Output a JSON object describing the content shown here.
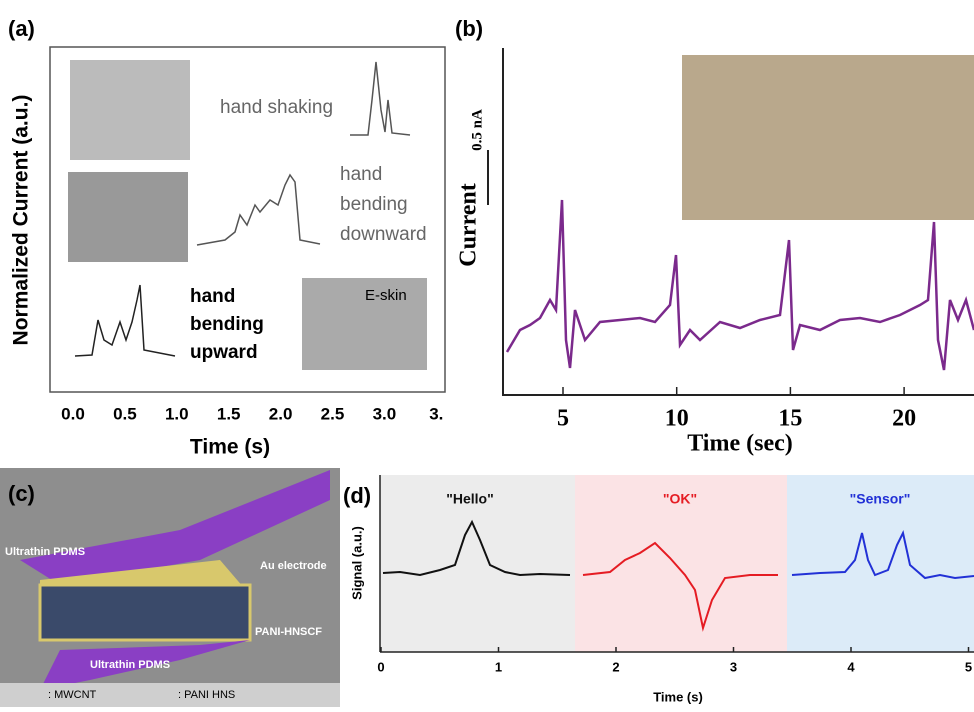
{
  "panels": [
    {
      "label": "(a)",
      "x_axis_title": "Time (s)",
      "y_axis_title": "Normalized Current (a.u.)",
      "x_tick_labels": [
        "0.0",
        "0.5",
        "1.0",
        "1.5",
        "2.0",
        "2.5",
        "3.0",
        "3."
      ],
      "annotations": [
        "hand shaking",
        "hand",
        "bending",
        "downward",
        "hand",
        "bending",
        "upward",
        "E-skin"
      ]
    },
    {
      "label": "(b)",
      "x_axis_title": "Time (sec)",
      "y_axis_title": "Current",
      "scale_bar": "0.5 nA",
      "x_tick_labels": [
        "5",
        "10",
        "15",
        "20"
      ]
    },
    {
      "label": "(c)",
      "annotations": [
        "Ultrathin PDMS",
        "Au electrode",
        "PANI-HNSCF",
        "Ultrathin PDMS"
      ],
      "legend": [
        ": MWCNT",
        ": PANI HNS"
      ]
    },
    {
      "label": "(d)",
      "x_axis_title": "Time (s)",
      "y_axis_title": "Signal (a.u.)",
      "x_tick_labels": [
        "0",
        "1",
        "2",
        "3",
        "4",
        "5"
      ],
      "words": [
        "\"Hello\"",
        "\"OK\"",
        "\"Sensor\""
      ]
    }
  ]
}
